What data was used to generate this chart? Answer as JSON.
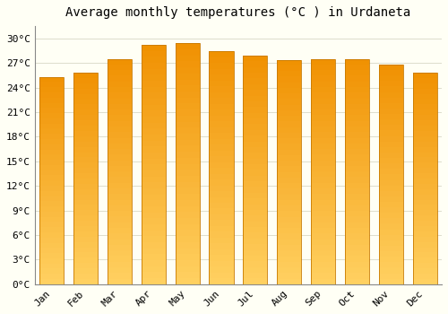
{
  "title": "Average monthly temperatures (°C ) in Urdaneta",
  "months": [
    "Jan",
    "Feb",
    "Mar",
    "Apr",
    "May",
    "Jun",
    "Jul",
    "Aug",
    "Sep",
    "Oct",
    "Nov",
    "Dec"
  ],
  "values": [
    25.3,
    25.8,
    27.5,
    29.2,
    29.4,
    28.4,
    27.9,
    27.4,
    27.5,
    27.5,
    26.8,
    25.8
  ],
  "bar_color_main": "#FCA415",
  "bar_color_light": "#FFD060",
  "bar_edge_color": "#C87A00",
  "background_color": "#FFFFF5",
  "grid_color": "#DDDDCC",
  "ytick_values": [
    0,
    3,
    6,
    9,
    12,
    15,
    18,
    21,
    24,
    27,
    30
  ],
  "ylim": [
    0,
    31.5
  ],
  "title_fontsize": 10,
  "tick_fontsize": 8,
  "font_family": "monospace",
  "bar_width": 0.72
}
